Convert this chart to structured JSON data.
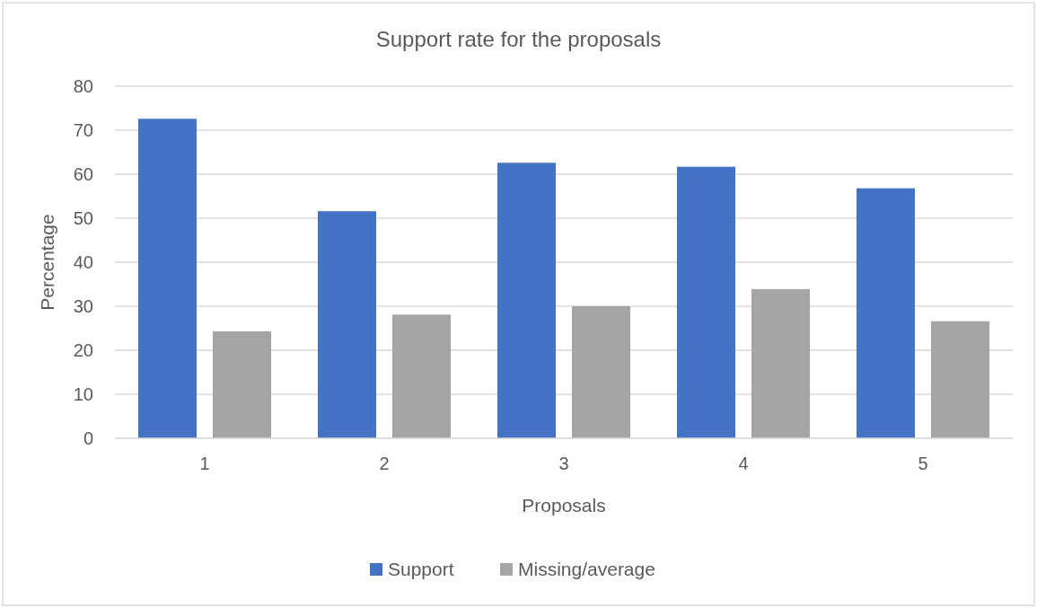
{
  "chart_data": {
    "type": "bar",
    "title": "Support rate for the proposals",
    "xlabel": "Proposals",
    "ylabel": "Percentage",
    "categories": [
      "1",
      "2",
      "3",
      "4",
      "5"
    ],
    "series": [
      {
        "name": "Support",
        "color": "#4472c4",
        "values": [
          72.6,
          51.6,
          62.6,
          61.7,
          56.8
        ]
      },
      {
        "name": "Missing/average",
        "color": "#a5a5a5",
        "values": [
          24.3,
          28.1,
          30.0,
          33.9,
          26.6
        ]
      }
    ],
    "ylim": [
      0,
      80
    ],
    "yticks": [
      0,
      10,
      20,
      30,
      40,
      50,
      60,
      70,
      80
    ],
    "grid": "y",
    "legend": "bottom"
  }
}
